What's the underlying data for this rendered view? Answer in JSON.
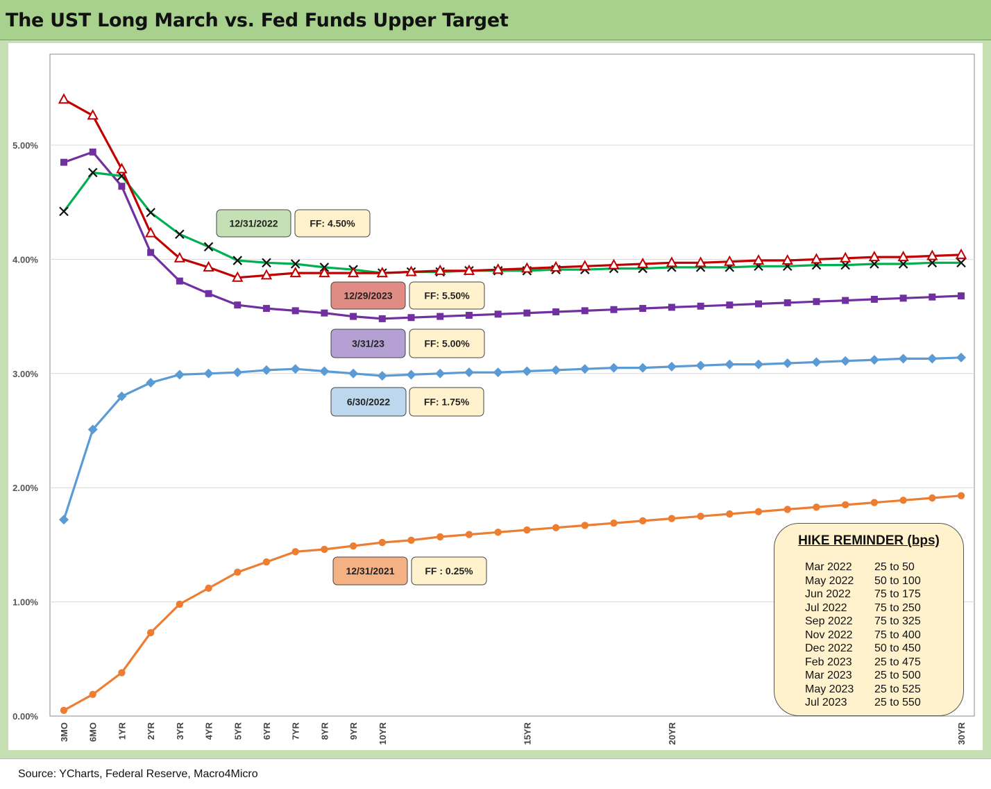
{
  "title": "The UST Long March vs. Fed Funds Upper Target",
  "source": "Source: YCharts, Federal Reserve, Macro4Micro",
  "colors": {
    "title_bg": "#a9d18e",
    "frame_bg": "#c6e0b4",
    "s_2021": "#ed7d31",
    "s_jun22": "#5b9bd5",
    "s_dec22": "#00b050",
    "s_mar23": "#7030a0",
    "s_dec23": "#c00000"
  },
  "chart_data": {
    "type": "line",
    "ylim": [
      0,
      0.055
    ],
    "y_ticks": [
      0,
      0.01,
      0.02,
      0.03,
      0.04,
      0.05
    ],
    "y_tick_labels": [
      "0.00%",
      "1.00%",
      "2.00%",
      "3.00%",
      "4.00%",
      "5.00%"
    ],
    "x_tick_labels": [
      {
        "index": 0,
        "label": "3MO"
      },
      {
        "index": 1,
        "label": "6MO"
      },
      {
        "index": 2,
        "label": "1YR"
      },
      {
        "index": 3,
        "label": "2YR"
      },
      {
        "index": 4,
        "label": "3YR"
      },
      {
        "index": 5,
        "label": "4YR"
      },
      {
        "index": 6,
        "label": "5YR"
      },
      {
        "index": 7,
        "label": "6YR"
      },
      {
        "index": 8,
        "label": "7YR"
      },
      {
        "index": 9,
        "label": "8YR"
      },
      {
        "index": 10,
        "label": "9YR"
      },
      {
        "index": 11,
        "label": "10YR"
      },
      {
        "index": 16,
        "label": "15YR"
      },
      {
        "index": 21,
        "label": "20YR"
      },
      {
        "index": 31,
        "label": "30YR"
      }
    ],
    "grid": "horizontal",
    "series": [
      {
        "key": "s2021",
        "color_key": "s_2021",
        "marker": "circle",
        "values": [
          0.0005,
          0.0019,
          0.0038,
          0.0073,
          0.0098,
          0.0112,
          0.0126,
          0.0135,
          0.0144,
          0.0146,
          0.0149,
          0.0152,
          0.0154,
          0.0157,
          0.0159,
          0.0161,
          0.0163,
          0.0165,
          0.0167,
          0.0169,
          0.0171,
          0.0173,
          0.0175,
          0.0177,
          0.0179,
          0.0181,
          0.0183,
          0.0185,
          0.0187,
          0.0189,
          0.0191,
          0.0193
        ]
      },
      {
        "key": "sJun22",
        "color_key": "s_jun22",
        "marker": "diamond",
        "values": [
          0.0172,
          0.0251,
          0.028,
          0.0292,
          0.0299,
          0.03,
          0.0301,
          0.0303,
          0.0304,
          0.0302,
          0.03,
          0.0298,
          0.0299,
          0.03,
          0.0301,
          0.0301,
          0.0302,
          0.0303,
          0.0304,
          0.0305,
          0.0305,
          0.0306,
          0.0307,
          0.0308,
          0.0308,
          0.0309,
          0.031,
          0.0311,
          0.0312,
          0.0313,
          0.0313,
          0.0314
        ]
      },
      {
        "key": "sMar23",
        "color_key": "s_mar23",
        "marker": "square",
        "values": [
          0.0485,
          0.0494,
          0.0464,
          0.0406,
          0.0381,
          0.037,
          0.036,
          0.0357,
          0.0355,
          0.0353,
          0.035,
          0.0348,
          0.0349,
          0.035,
          0.0351,
          0.0352,
          0.0353,
          0.0354,
          0.0355,
          0.0356,
          0.0357,
          0.0358,
          0.0359,
          0.036,
          0.0361,
          0.0362,
          0.0363,
          0.0364,
          0.0365,
          0.0366,
          0.0367,
          0.0368
        ]
      },
      {
        "key": "sDec22",
        "color_key": "s_dec22",
        "marker": "x",
        "values": [
          0.0442,
          0.0476,
          0.0473,
          0.0441,
          0.0422,
          0.0411,
          0.0399,
          0.0397,
          0.0396,
          0.0393,
          0.0391,
          0.0388,
          0.0389,
          0.0389,
          0.039,
          0.039,
          0.039,
          0.0391,
          0.0391,
          0.0392,
          0.0392,
          0.0393,
          0.0393,
          0.0393,
          0.0394,
          0.0394,
          0.0395,
          0.0395,
          0.0396,
          0.0396,
          0.0397,
          0.0397
        ]
      },
      {
        "key": "sDec23",
        "color_key": "s_dec23",
        "marker": "triangle",
        "values": [
          0.054,
          0.0526,
          0.0479,
          0.0423,
          0.0401,
          0.0393,
          0.0384,
          0.0386,
          0.0388,
          0.0388,
          0.0388,
          0.0388,
          0.0389,
          0.039,
          0.039,
          0.0391,
          0.0392,
          0.0393,
          0.0394,
          0.0395,
          0.0396,
          0.0397,
          0.0397,
          0.0398,
          0.0399,
          0.0399,
          0.04,
          0.0401,
          0.0402,
          0.0402,
          0.0403,
          0.0404
        ]
      }
    ],
    "annotations": [
      {
        "text": "12/31/2022",
        "fill": "#c5e0b4",
        "ff": "FF: 4.50%"
      },
      {
        "text": "12/29/2023",
        "fill": "#e08c85",
        "ff": "FF: 5.50%"
      },
      {
        "text": "3/31/23",
        "fill": "#b4a0d3",
        "ff": "FF: 5.00%"
      },
      {
        "text": "6/30/2022",
        "fill": "#bdd7ee",
        "ff": "FF: 1.75%"
      },
      {
        "text": "12/31/2021",
        "fill": "#f4b183",
        "ff": "FF : 0.25%"
      }
    ]
  },
  "hike_reminder": {
    "title": "HIKE REMINDER (bps)",
    "rows": [
      {
        "month": "Mar 2022",
        "hike": "25 to 50"
      },
      {
        "month": "May 2022",
        "hike": "50 to 100"
      },
      {
        "month": "Jun 2022",
        "hike": "75 to 175"
      },
      {
        "month": "Jul 2022",
        "hike": "75 to 250"
      },
      {
        "month": "Sep 2022",
        "hike": "75 to 325"
      },
      {
        "month": "Nov 2022",
        "hike": "75 to 400"
      },
      {
        "month": "Dec 2022",
        "hike": "50 to 450"
      },
      {
        "month": "Feb 2023",
        "hike": "25 to 475"
      },
      {
        "month": "Mar 2023",
        "hike": "25 to 500"
      },
      {
        "month": "May 2023",
        "hike": "25 to 525"
      },
      {
        "month": "Jul 2023",
        "hike": "25 to 550"
      }
    ]
  }
}
